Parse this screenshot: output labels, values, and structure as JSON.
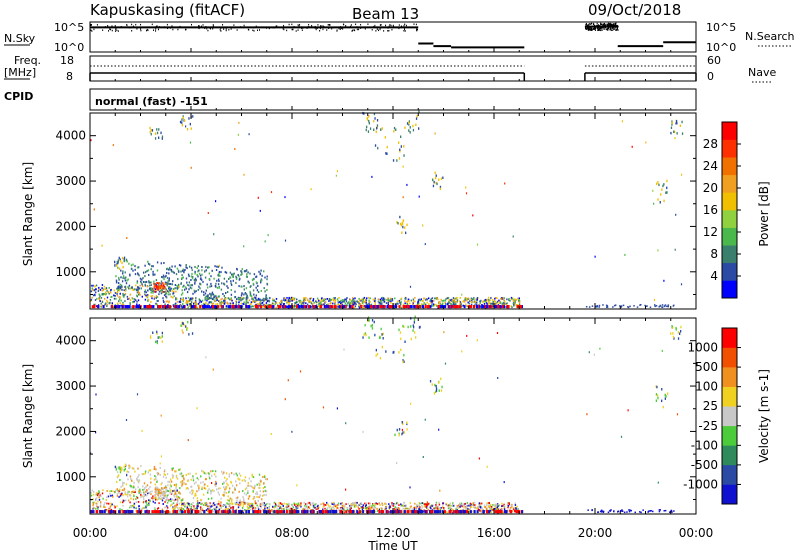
{
  "header": {
    "station": "Kapuskasing (fitACF)",
    "beam": "Beam 13",
    "date": "09/Oct/2018"
  },
  "top_panels": {
    "nsky_label": "N.Sky",
    "nsky_ticks": [
      "10^5",
      "10^0"
    ],
    "nsearch_label": "N.Search",
    "nsearch_ticks": [
      "10^5",
      "10^0"
    ],
    "freq_label": "Freq.",
    "freq_unit": "[MHz]",
    "freq_ticks": [
      "18",
      "8"
    ],
    "nave_label": "Nave",
    "nave_ticks": [
      "60",
      "0"
    ],
    "cpid_label": "CPID",
    "cpid_value": "normal (fast) -151"
  },
  "colors": {
    "power_scale": [
      "#0000ff",
      "#2a4aa3",
      "#3a7f6e",
      "#4ab84a",
      "#8fd13e",
      "#f0c000",
      "#f0a020",
      "#f07000",
      "#ff3000",
      "#ff0000"
    ],
    "velocity_scale": [
      "#1010d0",
      "#2a4aa3",
      "#2f8a5c",
      "#4ccc3a",
      "#c8c8c8",
      "#f0d020",
      "#f09020",
      "#f05000",
      "#ff0000"
    ]
  },
  "chart_data": [
    {
      "type": "heatmap",
      "name": "Power",
      "ylabel": "Slant Range [km]",
      "xlabel": "Time UT",
      "ylim": [
        180,
        4500
      ],
      "xlim": [
        0,
        24
      ],
      "yticks": [
        "1000",
        "2000",
        "3000",
        "4000"
      ],
      "xticks": [
        "00:00",
        "04:00",
        "08:00",
        "12:00",
        "16:00",
        "20:00",
        "00:00"
      ],
      "colorbar": {
        "label": "Power [dB]",
        "ticks": [
          "4",
          "8",
          "12",
          "16",
          "20",
          "24",
          "28"
        ],
        "range": [
          0,
          30
        ]
      },
      "data_gaps_ut": [
        [
          17.2,
          19.6
        ]
      ]
    },
    {
      "type": "heatmap",
      "name": "Velocity",
      "ylabel": "Slant Range [km]",
      "xlabel": "Time UT",
      "ylim": [
        180,
        4500
      ],
      "xlim": [
        0,
        24
      ],
      "yticks": [
        "1000",
        "2000",
        "3000",
        "4000"
      ],
      "xticks": [
        "00:00",
        "04:00",
        "08:00",
        "12:00",
        "16:00",
        "20:00",
        "00:00"
      ],
      "colorbar": {
        "label": "Velocity [m s-1]",
        "ticks": [
          "1000",
          "500",
          "100",
          "25",
          "-25",
          "-100",
          "-500",
          "-1000"
        ],
        "range": [
          -1000,
          1000
        ]
      },
      "data_gaps_ut": [
        [
          17.2,
          19.6
        ]
      ]
    }
  ],
  "nsky_series": {
    "segments": [
      {
        "start": 0.0,
        "end": 13.0,
        "level": 0.87
      },
      {
        "start": 13.0,
        "end": 13.6,
        "level": 0.25
      },
      {
        "start": 13.6,
        "end": 14.3,
        "level": 0.15
      },
      {
        "start": 14.3,
        "end": 17.2,
        "level": 0.1
      },
      {
        "start": 19.6,
        "end": 20.9,
        "level": 0.9
      },
      {
        "start": 20.9,
        "end": 22.7,
        "level": 0.15
      },
      {
        "start": 22.7,
        "end": 24.0,
        "level": 0.3
      }
    ]
  }
}
